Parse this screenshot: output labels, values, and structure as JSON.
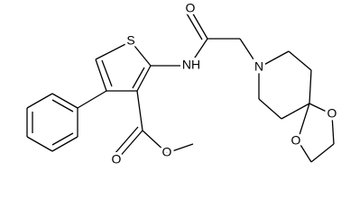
{
  "molecule": {
    "labels": [
      "S",
      "NH",
      "O",
      "N",
      "O",
      "O",
      "O",
      "O"
    ]
  }
}
